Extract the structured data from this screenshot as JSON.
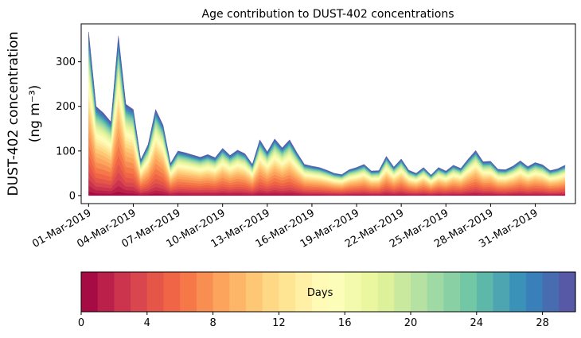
{
  "chart_data": {
    "type": "area",
    "stacked": true,
    "title": "Age contribution to DUST-402 concentrations",
    "ylabel_line1": "DUST-402 concentration",
    "ylabel_line2": "(ng m⁻³)",
    "xlabel": "",
    "ylim": [
      -18,
      385
    ],
    "yticks": [
      0,
      100,
      200,
      300
    ],
    "xlim_day": [
      -0.5,
      32.7
    ],
    "xtick_labels": [
      "01-Mar-2019",
      "04-Mar-2019",
      "07-Mar-2019",
      "10-Mar-2019",
      "13-Mar-2019",
      "16-Mar-2019",
      "19-Mar-2019",
      "22-Mar-2019",
      "25-Mar-2019",
      "28-Mar-2019",
      "31-Mar-2019"
    ],
    "xtick_days": [
      0,
      3,
      6,
      9,
      12,
      15,
      18,
      21,
      24,
      27,
      30
    ],
    "x_day": [
      0,
      0.5,
      1.0,
      1.5,
      2.0,
      2.5,
      3.0,
      3.5,
      4.0,
      4.5,
      5.0,
      5.5,
      6.0,
      6.5,
      7.0,
      7.5,
      8.0,
      8.5,
      9.0,
      9.5,
      10.0,
      10.5,
      11.0,
      11.5,
      12.0,
      12.5,
      13.0,
      13.5,
      14.0,
      14.5,
      15.0,
      15.5,
      16.0,
      16.5,
      17.0,
      17.5,
      18.0,
      18.5,
      19.0,
      19.5,
      20.0,
      20.5,
      21.0,
      21.5,
      22.0,
      22.5,
      23.0,
      23.5,
      24.0,
      24.5,
      25.0,
      25.5,
      26.0,
      26.5,
      27.0,
      27.5,
      28.0,
      28.5,
      29.0,
      29.5,
      30.0,
      30.5,
      31.0,
      31.5,
      32.0
    ],
    "total": [
      367,
      200,
      185,
      165,
      358,
      205,
      193,
      80,
      115,
      193,
      158,
      72,
      100,
      96,
      91,
      86,
      92,
      85,
      106,
      90,
      102,
      94,
      70,
      125,
      98,
      127,
      107,
      125,
      96,
      70,
      66,
      63,
      57,
      50,
      47,
      58,
      63,
      70,
      55,
      56,
      88,
      64,
      82,
      57,
      50,
      63,
      46,
      63,
      55,
      68,
      61,
      82,
      101,
      76,
      77,
      59,
      58,
      66,
      78,
      65,
      74,
      69,
      56,
      60,
      68
    ],
    "num_bands": 30,
    "band_weights": [
      0.025,
      0.035,
      0.04,
      0.045,
      0.05,
      0.055,
      0.06,
      0.06,
      0.055,
      0.05,
      0.045,
      0.04,
      0.035,
      0.035,
      0.03,
      0.03,
      0.03,
      0.028,
      0.026,
      0.024,
      0.022,
      0.02,
      0.02,
      0.018,
      0.018,
      0.018,
      0.018,
      0.018,
      0.017,
      0.017
    ],
    "colorbar": {
      "label": "Days",
      "ticks": [
        0,
        4,
        8,
        12,
        16,
        20,
        24,
        28
      ],
      "min": 0,
      "max": 30,
      "colors": [
        "#9e0142",
        "#d53e4f",
        "#f46d43",
        "#fdae61",
        "#fee08b",
        "#ffffbf",
        "#e6f598",
        "#abdda4",
        "#66c2a5",
        "#3288bd",
        "#5e4fa2"
      ]
    }
  }
}
